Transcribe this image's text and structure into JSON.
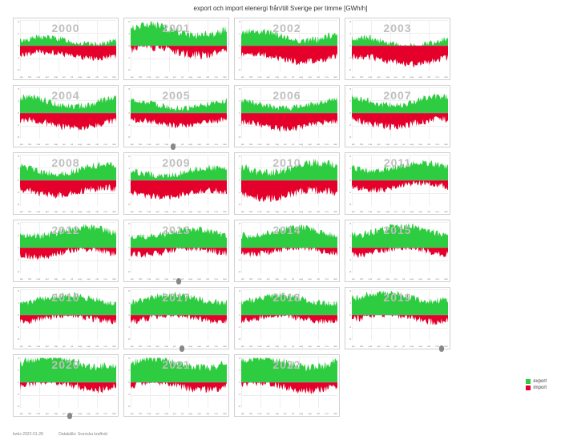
{
  "title": "export och import elenergi från/till Sverige per timme [GWh/h]",
  "colors": {
    "export": "#2ecc40",
    "import": "#e4002b",
    "grid": "#eeeeee",
    "border": "#d0d0d0",
    "yearlabel": "#bfbfbf",
    "bg": "#ffffff"
  },
  "legend": {
    "export": "export",
    "import": "import"
  },
  "footer": {
    "date": "kwiix 2022-01-28",
    "source": "Datakälla: Svenska kraftnät"
  },
  "axes": {
    "ylim": [
      -8,
      8
    ],
    "ytick": [
      8,
      4,
      0,
      -4,
      -8
    ],
    "months": [
      "jan",
      "feb",
      "mar",
      "apr",
      "maj",
      "jun",
      "jul",
      "aug",
      "sep",
      "okt",
      "nov",
      "dec"
    ]
  },
  "panels": [
    {
      "year": "2000",
      "marker": null,
      "export_bias": 0.15,
      "import_bias": 0.35,
      "amp": 0.5
    },
    {
      "year": "2001",
      "marker": null,
      "export_bias": 0.55,
      "import_bias": 0.15,
      "amp": 0.7
    },
    {
      "year": "2002",
      "marker": null,
      "export_bias": 0.35,
      "import_bias": 0.45,
      "amp": 0.6
    },
    {
      "year": "2003",
      "marker": null,
      "export_bias": 0.1,
      "import_bias": 0.55,
      "amp": 0.6
    },
    {
      "year": "2004",
      "marker": null,
      "export_bias": 0.4,
      "import_bias": 0.4,
      "amp": 0.6
    },
    {
      "year": "2005",
      "marker": 0.42,
      "export_bias": 0.3,
      "import_bias": 0.35,
      "amp": 0.5
    },
    {
      "year": "2006",
      "marker": null,
      "export_bias": 0.3,
      "import_bias": 0.45,
      "amp": 0.55
    },
    {
      "year": "2007",
      "marker": null,
      "export_bias": 0.45,
      "import_bias": 0.35,
      "amp": 0.6
    },
    {
      "year": "2008",
      "marker": null,
      "export_bias": 0.4,
      "import_bias": 0.4,
      "amp": 0.6
    },
    {
      "year": "2009",
      "marker": null,
      "export_bias": 0.3,
      "import_bias": 0.5,
      "amp": 0.55
    },
    {
      "year": "2010",
      "marker": null,
      "export_bias": 0.45,
      "import_bias": 0.5,
      "amp": 0.7
    },
    {
      "year": "2011",
      "marker": null,
      "export_bias": 0.5,
      "import_bias": 0.2,
      "amp": 0.55
    },
    {
      "year": "2012",
      "marker": null,
      "export_bias": 0.6,
      "import_bias": 0.15,
      "amp": 0.6
    },
    {
      "year": "2013",
      "marker": 0.48,
      "export_bias": 0.55,
      "import_bias": 0.1,
      "amp": 0.55
    },
    {
      "year": "2014",
      "marker": null,
      "export_bias": 0.6,
      "import_bias": 0.08,
      "amp": 0.55
    },
    {
      "year": "2015",
      "marker": null,
      "export_bias": 0.65,
      "import_bias": 0.08,
      "amp": 0.6
    },
    {
      "year": "2016",
      "marker": null,
      "export_bias": 0.6,
      "import_bias": 0.1,
      "amp": 0.55
    },
    {
      "year": "2017",
      "marker": 0.52,
      "export_bias": 0.62,
      "import_bias": 0.08,
      "amp": 0.55
    },
    {
      "year": "2018",
      "marker": null,
      "export_bias": 0.58,
      "import_bias": 0.1,
      "amp": 0.55
    },
    {
      "year": "2019",
      "marker": 0.92,
      "export_bias": 0.7,
      "import_bias": 0.06,
      "amp": 0.6
    },
    {
      "year": "2020",
      "marker": 0.5,
      "export_bias": 0.78,
      "import_bias": 0.05,
      "amp": 0.7
    },
    {
      "year": "2021",
      "marker": null,
      "export_bias": 0.72,
      "import_bias": 0.08,
      "amp": 0.65
    },
    {
      "year": "2022",
      "marker": null,
      "export_bias": 0.75,
      "import_bias": 0.1,
      "amp": 0.7
    }
  ]
}
